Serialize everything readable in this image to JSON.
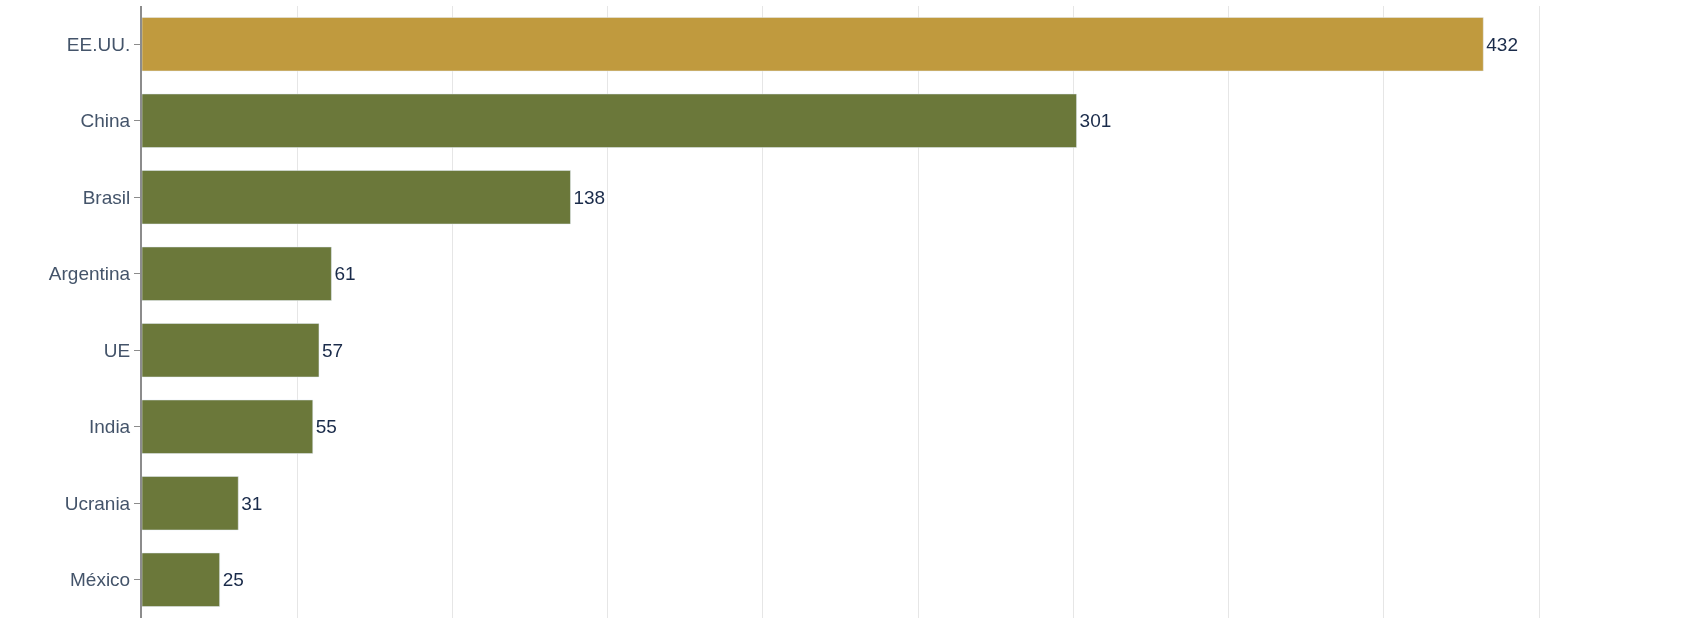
{
  "chart_data": {
    "type": "bar",
    "orientation": "horizontal",
    "categories": [
      "EE.UU.",
      "China",
      "Brasil",
      "Argentina",
      "UE",
      "India",
      "Ucrania",
      "México"
    ],
    "values": [
      432,
      301,
      138,
      61,
      57,
      55,
      31,
      25
    ],
    "colors": [
      "#c09a3e",
      "#6b783a",
      "#6b783a",
      "#6b783a",
      "#6b783a",
      "#6b783a",
      "#6b783a",
      "#6b783a"
    ],
    "xlim": [
      0,
      496
    ],
    "xticks": [
      {
        "value": 0,
        "label": null
      },
      {
        "value": 50,
        "label": null
      },
      {
        "value": 100,
        "label": null
      },
      {
        "value": 150,
        "label": null
      },
      {
        "value": 200,
        "label": null
      },
      {
        "value": 250,
        "label": null
      },
      {
        "value": 300,
        "label": null
      },
      {
        "value": 350,
        "label": null
      },
      {
        "value": 400,
        "label": null
      },
      {
        "value": 450,
        "label": null
      }
    ],
    "tick_labels": "y",
    "grid": "x",
    "data_labels": true,
    "legend": false
  }
}
